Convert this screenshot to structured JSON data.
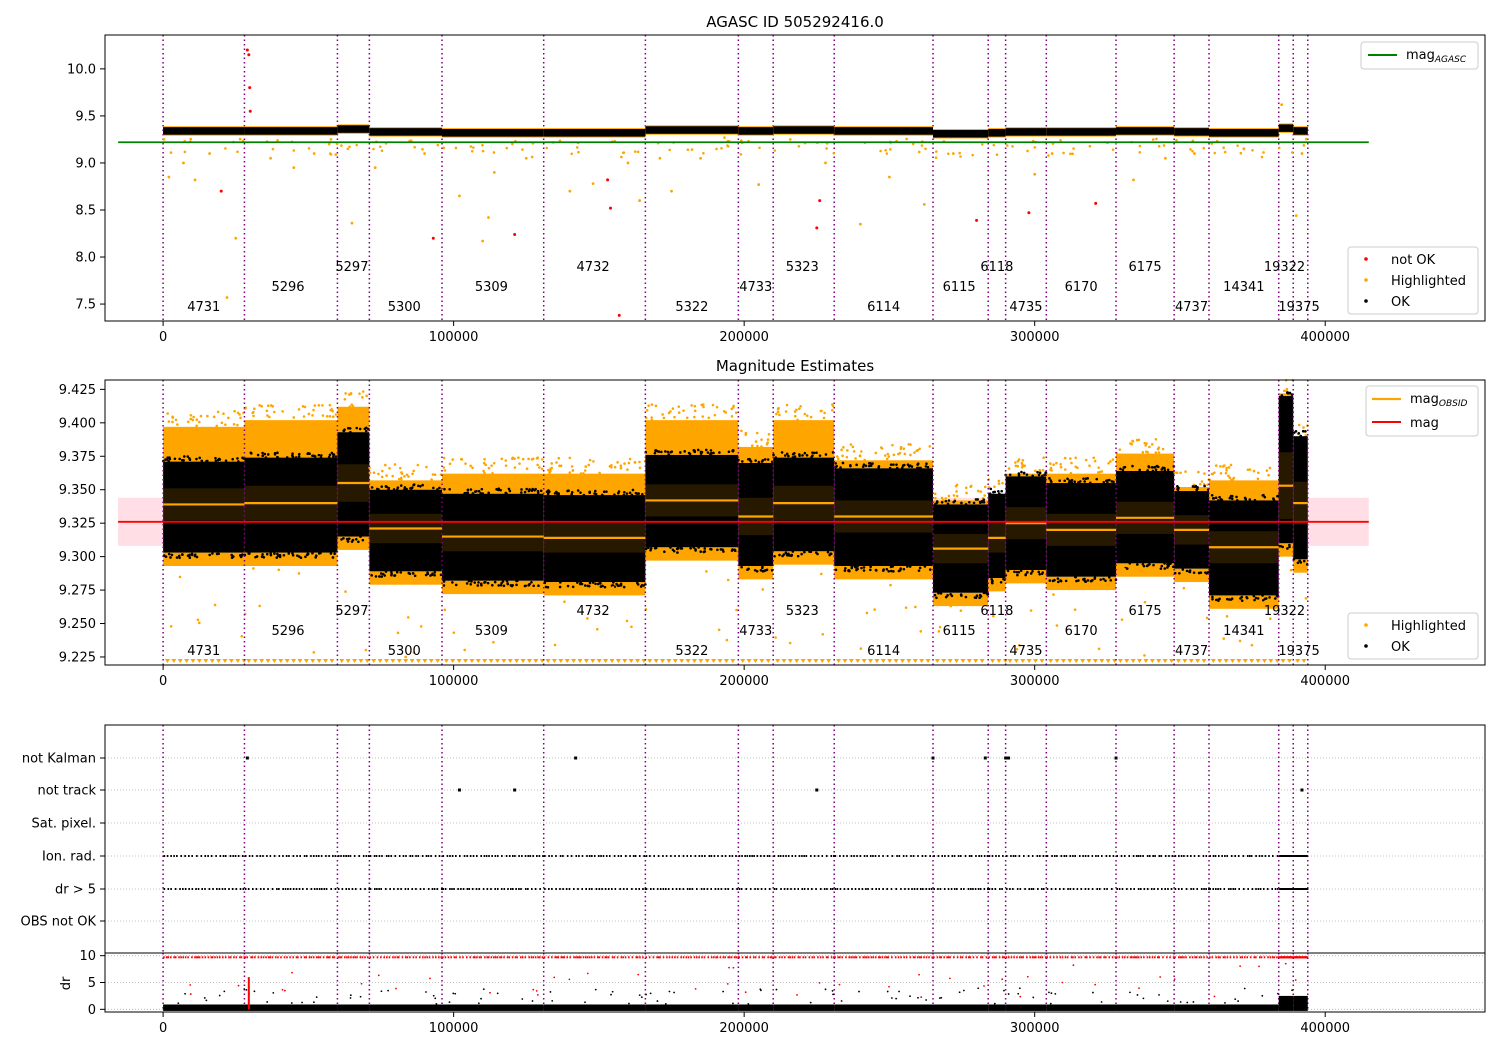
{
  "colors": {
    "ok": "#000000",
    "highlighted": "#ffa500",
    "not_ok": "#ff0000",
    "obsid_line": "#800080",
    "agasc_line": "#008000",
    "mag_line": "#ff0000",
    "mag_obsid": "#ffa500",
    "mag_band": "#ffc0cb"
  },
  "chart_data": [
    {
      "type": "scatter",
      "title": "AGASC ID 505292416.0",
      "xlim": [
        -20000,
        455000
      ],
      "ylim": [
        7.32,
        10.36
      ],
      "xticks": [
        0,
        100000,
        200000,
        300000,
        400000
      ],
      "xtick_labels": [
        "0",
        "100000",
        "200000",
        "300000",
        "400000"
      ],
      "yticks": [
        7.5,
        8.0,
        8.5,
        9.0,
        9.5,
        10.0
      ],
      "ytick_labels": [
        "7.5",
        "8.0",
        "8.5",
        "9.0",
        "9.5",
        "10.0"
      ],
      "mag_agasc": 9.22,
      "mag_agasc_x_range": [
        0,
        415000
      ],
      "legend_lines": {
        "mag_agasc": {
          "label": "mag",
          "sub": "AGASC"
        }
      },
      "legend_points": [
        "not OK",
        "Highlighted",
        "OK"
      ],
      "obsid_boundaries": [
        0,
        28000,
        60000,
        71000,
        96000,
        131000,
        166000,
        198000,
        210000,
        231000,
        265000,
        284000,
        290000,
        304000,
        328000,
        348000,
        360000,
        384000,
        389000,
        394000
      ],
      "obsid_labels": [
        {
          "text": "4731",
          "x": 14000,
          "row": 2
        },
        {
          "text": "5296",
          "x": 43000,
          "row": 1
        },
        {
          "text": "5297",
          "x": 65000,
          "row": 0
        },
        {
          "text": "5300",
          "x": 83000,
          "row": 2
        },
        {
          "text": "5309",
          "x": 113000,
          "row": 1
        },
        {
          "text": "4732",
          "x": 148000,
          "row": 0
        },
        {
          "text": "5322",
          "x": 182000,
          "row": 2
        },
        {
          "text": "4733",
          "x": 204000,
          "row": 1
        },
        {
          "text": "5323",
          "x": 220000,
          "row": 0
        },
        {
          "text": "6114",
          "x": 248000,
          "row": 2
        },
        {
          "text": "6115",
          "x": 274000,
          "row": 1
        },
        {
          "text": "6118",
          "x": 287000,
          "row": 0
        },
        {
          "text": "4735",
          "x": 297000,
          "row": 2
        },
        {
          "text": "6170",
          "x": 316000,
          "row": 1
        },
        {
          "text": "6175",
          "x": 338000,
          "row": 0
        },
        {
          "text": "4737",
          "x": 354000,
          "row": 2
        },
        {
          "text": "14341",
          "x": 372000,
          "row": 1
        },
        {
          "text": "19322",
          "x": 386000,
          "row": 0
        },
        {
          "text": "19375",
          "x": 391000,
          "row": 2
        }
      ],
      "segments": [
        {
          "x": [
            0,
            28000
          ],
          "mag": 9.34
        },
        {
          "x": [
            28000,
            60000
          ],
          "mag": 9.34
        },
        {
          "x": [
            60000,
            71000
          ],
          "mag": 9.36
        },
        {
          "x": [
            71000,
            96000
          ],
          "mag": 9.33
        },
        {
          "x": [
            96000,
            131000
          ],
          "mag": 9.32
        },
        {
          "x": [
            131000,
            166000
          ],
          "mag": 9.32
        },
        {
          "x": [
            166000,
            198000
          ],
          "mag": 9.35
        },
        {
          "x": [
            198000,
            210000
          ],
          "mag": 9.34
        },
        {
          "x": [
            210000,
            231000
          ],
          "mag": 9.35
        },
        {
          "x": [
            231000,
            265000
          ],
          "mag": 9.34
        },
        {
          "x": [
            265000,
            284000
          ],
          "mag": 9.31
        },
        {
          "x": [
            284000,
            290000
          ],
          "mag": 9.32
        },
        {
          "x": [
            290000,
            304000
          ],
          "mag": 9.33
        },
        {
          "x": [
            304000,
            328000
          ],
          "mag": 9.33
        },
        {
          "x": [
            328000,
            348000
          ],
          "mag": 9.34
        },
        {
          "x": [
            348000,
            360000
          ],
          "mag": 9.33
        },
        {
          "x": [
            360000,
            384000
          ],
          "mag": 9.32
        },
        {
          "x": [
            384000,
            389000
          ],
          "mag": 9.37
        },
        {
          "x": [
            389000,
            394000
          ],
          "mag": 9.34
        }
      ],
      "not_ok_points": [
        {
          "x": 29000,
          "y": 10.2
        },
        {
          "x": 29500,
          "y": 10.15
        },
        {
          "x": 29800,
          "y": 9.8
        },
        {
          "x": 30000,
          "y": 9.55
        },
        {
          "x": 20000,
          "y": 8.7
        },
        {
          "x": 93000,
          "y": 8.2
        },
        {
          "x": 121000,
          "y": 8.24
        },
        {
          "x": 153000,
          "y": 8.82
        },
        {
          "x": 154000,
          "y": 8.52
        },
        {
          "x": 157000,
          "y": 7.38
        },
        {
          "x": 225000,
          "y": 8.31
        },
        {
          "x": 226000,
          "y": 8.6
        },
        {
          "x": 280000,
          "y": 8.39
        },
        {
          "x": 298000,
          "y": 8.47
        },
        {
          "x": 321000,
          "y": 8.57
        }
      ],
      "highlighted_points": [
        {
          "x": 2000,
          "y": 8.85
        },
        {
          "x": 7000,
          "y": 9.0
        },
        {
          "x": 11000,
          "y": 8.82
        },
        {
          "x": 16000,
          "y": 9.1
        },
        {
          "x": 22000,
          "y": 7.57
        },
        {
          "x": 25000,
          "y": 8.2
        },
        {
          "x": 37000,
          "y": 9.05
        },
        {
          "x": 45000,
          "y": 8.95
        },
        {
          "x": 52000,
          "y": 9.1
        },
        {
          "x": 65000,
          "y": 8.36
        },
        {
          "x": 73000,
          "y": 8.95
        },
        {
          "x": 90000,
          "y": 9.1
        },
        {
          "x": 102000,
          "y": 8.65
        },
        {
          "x": 110000,
          "y": 8.17
        },
        {
          "x": 112000,
          "y": 8.42
        },
        {
          "x": 114000,
          "y": 8.9
        },
        {
          "x": 125000,
          "y": 9.05
        },
        {
          "x": 140000,
          "y": 8.7
        },
        {
          "x": 148000,
          "y": 8.78
        },
        {
          "x": 160000,
          "y": 9.0
        },
        {
          "x": 164000,
          "y": 8.6
        },
        {
          "x": 171000,
          "y": 9.05
        },
        {
          "x": 175000,
          "y": 8.7
        },
        {
          "x": 185000,
          "y": 9.05
        },
        {
          "x": 205000,
          "y": 8.77
        },
        {
          "x": 228000,
          "y": 9.0
        },
        {
          "x": 240000,
          "y": 8.35
        },
        {
          "x": 250000,
          "y": 8.85
        },
        {
          "x": 262000,
          "y": 8.56
        },
        {
          "x": 272000,
          "y": 9.1
        },
        {
          "x": 300000,
          "y": 8.88
        },
        {
          "x": 306000,
          "y": 9.1
        },
        {
          "x": 334000,
          "y": 8.82
        },
        {
          "x": 345000,
          "y": 9.05
        },
        {
          "x": 355000,
          "y": 9.1
        },
        {
          "x": 372000,
          "y": 9.15
        },
        {
          "x": 385000,
          "y": 9.62
        },
        {
          "x": 390000,
          "y": 8.44
        },
        {
          "x": 392000,
          "y": 9.1
        }
      ]
    },
    {
      "type": "scatter",
      "title": "Magnitude Estimates",
      "xlim": [
        -20000,
        455000
      ],
      "ylim": [
        9.219,
        9.432
      ],
      "xticks": [
        0,
        100000,
        200000,
        300000,
        400000
      ],
      "xtick_labels": [
        "0",
        "100000",
        "200000",
        "300000",
        "400000"
      ],
      "yticks": [
        9.225,
        9.25,
        9.275,
        9.3,
        9.325,
        9.35,
        9.375,
        9.4,
        9.425
      ],
      "ytick_labels": [
        "9.225",
        "9.250",
        "9.275",
        "9.300",
        "9.325",
        "9.350",
        "9.375",
        "9.400",
        "9.425"
      ],
      "mag": 9.326,
      "mag_band": [
        9.308,
        9.344
      ],
      "mag_x_range": [
        0,
        415000
      ],
      "legend_lines": {
        "mag_obsid": {
          "label": "mag",
          "sub": "OBSID"
        },
        "mag": {
          "label": "mag"
        }
      },
      "legend_points": [
        "Highlighted",
        "OK"
      ],
      "segments": [
        {
          "x": [
            0,
            28000
          ],
          "mag": 9.339,
          "ok_band": [
            9.303,
            9.371
          ],
          "hi_top": 9.405,
          "std": 0.012
        },
        {
          "x": [
            28000,
            60000
          ],
          "mag": 9.34,
          "ok_band": [
            9.303,
            9.374
          ],
          "hi_top": 9.41,
          "std": 0.013
        },
        {
          "x": [
            60000,
            71000
          ],
          "mag": 9.355,
          "ok_band": [
            9.315,
            9.393
          ],
          "hi_top": 9.42,
          "std": 0.014
        },
        {
          "x": [
            71000,
            96000
          ],
          "mag": 9.321,
          "ok_band": [
            9.289,
            9.35
          ],
          "hi_top": 9.365,
          "std": 0.011
        },
        {
          "x": [
            96000,
            131000
          ],
          "mag": 9.315,
          "ok_band": [
            9.282,
            9.347
          ],
          "hi_top": 9.37,
          "std": 0.011
        },
        {
          "x": [
            131000,
            166000
          ],
          "mag": 9.314,
          "ok_band": [
            9.281,
            9.346
          ],
          "hi_top": 9.37,
          "std": 0.011
        },
        {
          "x": [
            166000,
            198000
          ],
          "mag": 9.342,
          "ok_band": [
            9.307,
            9.376
          ],
          "hi_top": 9.41,
          "std": 0.012
        },
        {
          "x": [
            198000,
            210000
          ],
          "mag": 9.33,
          "ok_band": [
            9.293,
            9.37
          ],
          "hi_top": 9.39,
          "std": 0.014
        },
        {
          "x": [
            210000,
            231000
          ],
          "mag": 9.34,
          "ok_band": [
            9.304,
            9.374
          ],
          "hi_top": 9.41,
          "std": 0.013
        },
        {
          "x": [
            231000,
            265000
          ],
          "mag": 9.33,
          "ok_band": [
            9.293,
            9.366
          ],
          "hi_top": 9.38,
          "std": 0.012
        },
        {
          "x": [
            265000,
            284000
          ],
          "mag": 9.306,
          "ok_band": [
            9.273,
            9.339
          ],
          "hi_top": 9.35,
          "std": 0.011
        },
        {
          "x": [
            284000,
            290000
          ],
          "mag": 9.314,
          "ok_band": [
            9.284,
            9.347
          ],
          "hi_top": 9.355,
          "std": 0.011
        },
        {
          "x": [
            290000,
            304000
          ],
          "mag": 9.325,
          "ok_band": [
            9.29,
            9.36
          ],
          "hi_top": 9.37,
          "std": 0.012
        },
        {
          "x": [
            304000,
            328000
          ],
          "mag": 9.32,
          "ok_band": [
            9.285,
            9.355
          ],
          "hi_top": 9.37,
          "std": 0.012
        },
        {
          "x": [
            328000,
            348000
          ],
          "mag": 9.329,
          "ok_band": [
            9.295,
            9.364
          ],
          "hi_top": 9.385,
          "std": 0.012
        },
        {
          "x": [
            348000,
            360000
          ],
          "mag": 9.32,
          "ok_band": [
            9.291,
            9.349
          ],
          "hi_top": 9.36,
          "std": 0.011
        },
        {
          "x": [
            360000,
            384000
          ],
          "mag": 9.307,
          "ok_band": [
            9.271,
            9.342
          ],
          "hi_top": 9.365,
          "std": 0.012
        },
        {
          "x": [
            384000,
            389000
          ],
          "mag": 9.353,
          "ok_band": [
            9.31,
            9.42
          ],
          "hi_top": 9.43,
          "std": 0.025
        },
        {
          "x": [
            389000,
            394000
          ],
          "mag": 9.34,
          "ok_band": [
            9.298,
            9.39
          ],
          "hi_top": 9.395,
          "std": 0.016
        }
      ]
    },
    {
      "type": "scatter",
      "title": "",
      "xlim": [
        -20000,
        455000
      ],
      "flag_rows": [
        "not Kalman",
        "not track",
        "Sat. pixel.",
        "Ion. rad.",
        "dr > 5",
        "OBS not OK"
      ],
      "not_kalman_x": [
        29000,
        142000,
        265000,
        283000,
        290000,
        291000,
        328000
      ],
      "not_track_x": [
        102000,
        121000,
        225000,
        392000
      ],
      "dr_ylim": [
        -0.5,
        10.5
      ],
      "dr_yticks": [
        0,
        5,
        10
      ],
      "dr_ytick_labels": [
        "0",
        "5",
        "10"
      ],
      "dr_ylabel": "dr",
      "xticks": [
        0,
        100000,
        200000,
        300000,
        400000
      ],
      "xtick_labels": [
        "0",
        "100000",
        "200000",
        "300000",
        "400000"
      ]
    }
  ]
}
